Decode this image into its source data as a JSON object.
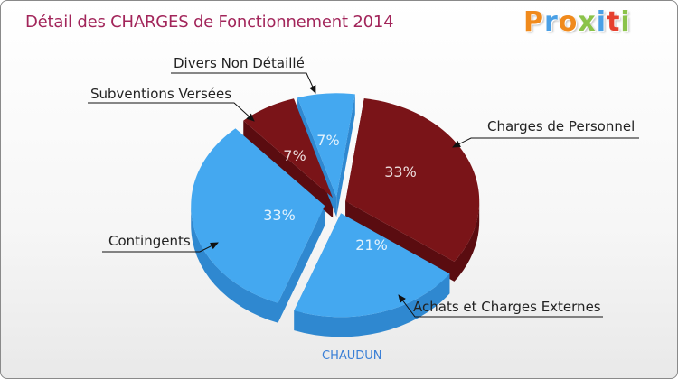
{
  "header": {
    "title": "Détail des CHARGES de Fonctionnement 2014",
    "logo_letters": [
      {
        "ch": "P",
        "color": "#f08a1c"
      },
      {
        "ch": "r",
        "color": "#4aa0e6"
      },
      {
        "ch": "o",
        "color": "#f08a1c"
      },
      {
        "ch": "x",
        "color": "#8bc34a"
      },
      {
        "ch": "i",
        "color": "#4aa0e6"
      },
      {
        "ch": "t",
        "color": "#e6402e"
      },
      {
        "ch": "i",
        "color": "#8bc34a"
      }
    ]
  },
  "footer": {
    "commune": "CHAUDUN"
  },
  "colors": {
    "dark_red": "#7a1418",
    "dark_red_side": "#5a0c10",
    "blue": "#44a8f0",
    "blue_side": "#2f88d0"
  },
  "chart_data": {
    "type": "pie",
    "title": "Détail des CHARGES de Fonctionnement 2014",
    "slices": [
      {
        "label": "Charges de Personnel",
        "percent_label": "33%",
        "value": 33,
        "color": "dark_red"
      },
      {
        "label": "Achats et Charges Externes",
        "percent_label": "21%",
        "value": 21,
        "color": "blue"
      },
      {
        "label": "Contingents",
        "percent_label": "33%",
        "value": 33,
        "color": "blue"
      },
      {
        "label": "Subventions Versées",
        "percent_label": "7%",
        "value": 7,
        "color": "dark_red"
      },
      {
        "label": "Divers Non Détaillé",
        "percent_label": "7%",
        "value": 7,
        "color": "blue"
      }
    ]
  }
}
